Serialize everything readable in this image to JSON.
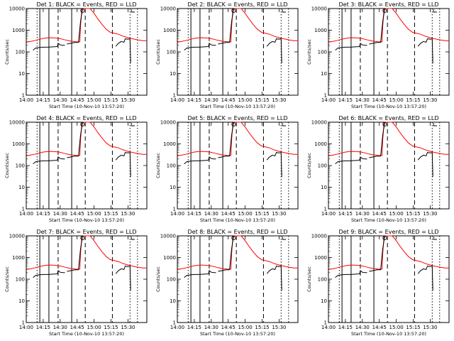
{
  "chart_data": [
    {
      "title": "Det 1: BLACK = Events, RED = LLD"
    },
    {
      "title": "Det 2: BLACK = Events, RED = LLD"
    },
    {
      "title": "Det 3: BLACK = Events, RED = LLD"
    },
    {
      "title": "Det 4: BLACK = Events, RED = LLD"
    },
    {
      "title": "Det 5: BLACK = Events, RED = LLD"
    },
    {
      "title": "Det 6: BLACK = Events, RED = LLD"
    },
    {
      "title": "Det 7: BLACK = Events, RED = LLD"
    },
    {
      "title": "Det 8: BLACK = Events, RED = LLD"
    },
    {
      "title": "Det 9: BLACK = Events, RED = LLD"
    }
  ],
  "shared": {
    "type": "line",
    "y_scale": "log",
    "ylim": [
      1,
      10000
    ],
    "y_ticks": [
      "1",
      "10",
      "100",
      "1000",
      "10000"
    ],
    "ylabel": "Counts/sec",
    "x_ticks": [
      "14:00",
      "14:15",
      "14:30",
      "14:45",
      "15:00",
      "15:15",
      "15:30"
    ],
    "xlabel": "Start Time (10-Nov-10 13:57:20)",
    "colors": {
      "events": "#000000",
      "lld": "#ff0000"
    },
    "series": [
      {
        "key": "lld",
        "segments": [
          [
            [
              14.0,
              280
            ],
            [
              14.03,
              300
            ],
            [
              14.06,
              330
            ],
            [
              14.09,
              370
            ],
            [
              14.12,
              410
            ],
            [
              14.15,
              440
            ],
            [
              14.18,
              450
            ],
            [
              14.21,
              440
            ],
            [
              14.24,
              420
            ],
            [
              14.27,
              380
            ],
            [
              14.3,
              340
            ],
            [
              14.33,
              310
            ],
            [
              14.35,
              300
            ],
            [
              14.37,
              290
            ],
            [
              14.395,
              290
            ],
            [
              14.4,
              1500
            ],
            [
              14.41,
              9500
            ],
            [
              14.42,
              13000
            ],
            [
              14.45,
              13000
            ],
            [
              14.47,
              11000
            ],
            [
              14.5,
              6000
            ],
            [
              14.53,
              3200
            ],
            [
              14.56,
              1800
            ],
            [
              14.59,
              1100
            ],
            [
              14.62,
              800
            ],
            [
              14.65,
              720
            ],
            [
              14.68,
              650
            ],
            [
              14.71,
              540
            ],
            [
              14.74,
              470
            ],
            [
              14.77,
              420
            ],
            [
              14.8,
              380
            ],
            [
              14.83,
              350
            ],
            [
              14.86,
              330
            ],
            [
              14.89,
              330
            ]
          ]
        ]
      },
      {
        "key": "events",
        "segments": [
          [
            [
              14.05,
              120
            ],
            [
              14.07,
              150
            ],
            [
              14.1,
              160
            ],
            [
              14.13,
              165
            ],
            [
              14.16,
              165
            ],
            [
              14.19,
              170
            ],
            [
              14.22,
              175
            ],
            [
              14.23,
              180
            ],
            [
              14.235,
              250
            ],
            [
              14.25,
              210
            ],
            [
              14.27,
              200
            ],
            [
              14.285,
              200
            ]
          ],
          [
            [
              14.3,
              230
            ],
            [
              14.33,
              250
            ],
            [
              14.36,
              270
            ],
            [
              14.385,
              270
            ]
          ],
          [
            [
              14.385,
              270
            ],
            [
              14.4,
              2500
            ],
            [
              14.415,
              12000
            ]
          ],
          [
            [
              14.66,
              180
            ],
            [
              14.68,
              250
            ],
            [
              14.7,
              300
            ],
            [
              14.72,
              280
            ],
            [
              14.73,
              400
            ],
            [
              14.75,
              380
            ],
            [
              14.765,
              400
            ],
            [
              14.77,
              30
            ]
          ]
        ]
      }
    ],
    "markers": {
      "solid": [
        14.1,
        14.167,
        14.335
      ],
      "dashed": [
        14.235,
        14.435,
        14.635
      ],
      "dotted": [
        14.08,
        14.765,
        14.82
      ]
    }
  }
}
